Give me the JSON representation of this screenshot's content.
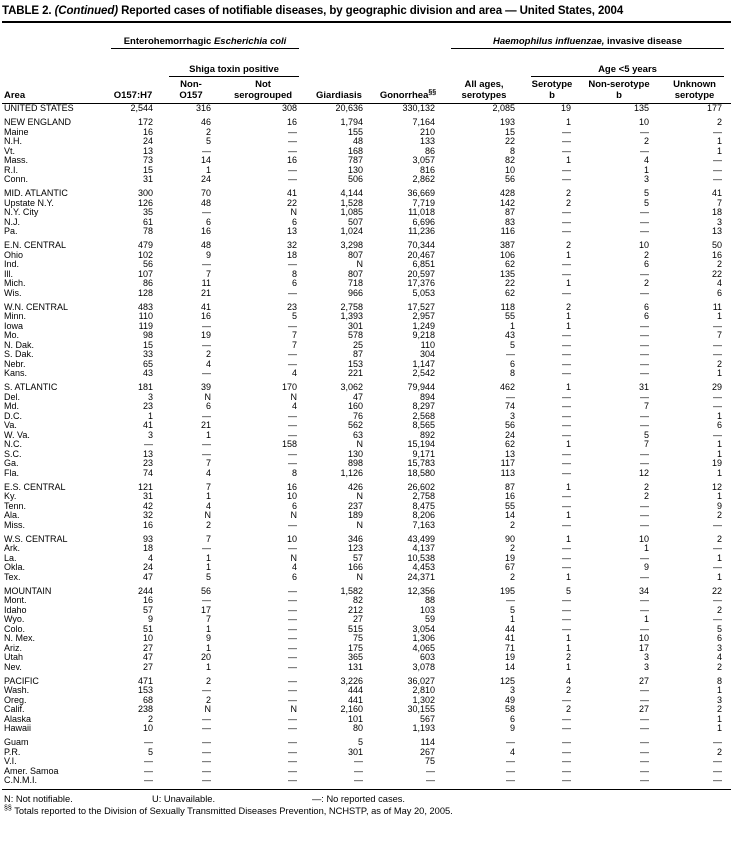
{
  "title": {
    "prefix": "TABLE 2.",
    "continued": " (Continued)",
    "text": " Reported cases of notifiable diseases, by geographic division and area — United States, 2004"
  },
  "header": {
    "area": "Area",
    "ehec_prefix": "Enterohemorrhagic ",
    "ehec_italic": "Escherichia coli",
    "shiga": "Shiga toxin positive",
    "hinf_italic": "Haemophilus influenzae,",
    "hinf_suffix": " invasive disease",
    "age5": "Age <5 years",
    "col_o157": "O157:H7",
    "col_non_o157": "Non-\nO157",
    "col_not_serogrouped": "Not\nserogrouped",
    "col_giardiasis": "Giardiasis",
    "col_gonorrhea": "Gonorrhea",
    "col_gonorrhea_sup": "§§",
    "col_all_ages": "All ages,\nserotypes",
    "col_serotype_b": "Serotype\nb",
    "col_non_serotype_b": "Non-serotype\nb",
    "col_unknown": "Unknown\nserotype"
  },
  "table": {
    "sections": [
      {
        "rows": [
          {
            "area": "UNITED STATES",
            "values": [
              "2,544",
              "316",
              "308",
              "20,636",
              "330,132",
              "2,085",
              "19",
              "135",
              "177"
            ]
          }
        ]
      },
      {
        "rows": [
          {
            "area": "NEW ENGLAND",
            "values": [
              "172",
              "46",
              "16",
              "1,794",
              "7,164",
              "193",
              "1",
              "10",
              "2"
            ]
          },
          {
            "area": "Maine",
            "values": [
              "16",
              "2",
              "—",
              "155",
              "210",
              "15",
              "—",
              "—",
              "—"
            ]
          },
          {
            "area": "N.H.",
            "values": [
              "24",
              "5",
              "—",
              "48",
              "133",
              "22",
              "—",
              "2",
              "1"
            ]
          },
          {
            "area": "Vt.",
            "values": [
              "13",
              "—",
              "—",
              "168",
              "86",
              "8",
              "—",
              "—",
              "1"
            ]
          },
          {
            "area": "Mass.",
            "values": [
              "73",
              "14",
              "16",
              "787",
              "3,057",
              "82",
              "1",
              "4",
              "—"
            ]
          },
          {
            "area": "R.I.",
            "values": [
              "15",
              "1",
              "—",
              "130",
              "816",
              "10",
              "—",
              "1",
              "—"
            ]
          },
          {
            "area": "Conn.",
            "values": [
              "31",
              "24",
              "—",
              "506",
              "2,862",
              "56",
              "—",
              "3",
              "—"
            ]
          }
        ]
      },
      {
        "rows": [
          {
            "area": "MID. ATLANTIC",
            "values": [
              "300",
              "70",
              "41",
              "4,144",
              "36,669",
              "428",
              "2",
              "5",
              "41"
            ]
          },
          {
            "area": "Upstate N.Y.",
            "values": [
              "126",
              "48",
              "22",
              "1,528",
              "7,719",
              "142",
              "2",
              "5",
              "7"
            ]
          },
          {
            "area": "N.Y. City",
            "values": [
              "35",
              "—",
              "N",
              "1,085",
              "11,018",
              "87",
              "—",
              "—",
              "18"
            ]
          },
          {
            "area": "N.J.",
            "values": [
              "61",
              "6",
              "6",
              "507",
              "6,696",
              "83",
              "—",
              "—",
              "3"
            ]
          },
          {
            "area": "Pa.",
            "values": [
              "78",
              "16",
              "13",
              "1,024",
              "11,236",
              "116",
              "—",
              "—",
              "13"
            ]
          }
        ]
      },
      {
        "rows": [
          {
            "area": "E.N. CENTRAL",
            "values": [
              "479",
              "48",
              "32",
              "3,298",
              "70,344",
              "387",
              "2",
              "10",
              "50"
            ]
          },
          {
            "area": "Ohio",
            "values": [
              "102",
              "9",
              "18",
              "807",
              "20,467",
              "106",
              "1",
              "2",
              "16"
            ]
          },
          {
            "area": "Ind.",
            "values": [
              "56",
              "—",
              "—",
              "N",
              "6,851",
              "62",
              "—",
              "6",
              "2"
            ]
          },
          {
            "area": "Ill.",
            "values": [
              "107",
              "7",
              "8",
              "807",
              "20,597",
              "135",
              "—",
              "—",
              "22"
            ]
          },
          {
            "area": "Mich.",
            "values": [
              "86",
              "11",
              "6",
              "718",
              "17,376",
              "22",
              "1",
              "2",
              "4"
            ]
          },
          {
            "area": "Wis.",
            "values": [
              "128",
              "21",
              "—",
              "966",
              "5,053",
              "62",
              "—",
              "—",
              "6"
            ]
          }
        ]
      },
      {
        "rows": [
          {
            "area": "W.N. CENTRAL",
            "values": [
              "483",
              "41",
              "23",
              "2,758",
              "17,527",
              "118",
              "2",
              "6",
              "11"
            ]
          },
          {
            "area": "Minn.",
            "values": [
              "110",
              "16",
              "5",
              "1,393",
              "2,957",
              "55",
              "1",
              "6",
              "1"
            ]
          },
          {
            "area": "Iowa",
            "values": [
              "119",
              "—",
              "—",
              "301",
              "1,249",
              "1",
              "1",
              "—",
              "—"
            ]
          },
          {
            "area": "Mo.",
            "values": [
              "98",
              "19",
              "7",
              "578",
              "9,218",
              "43",
              "—",
              "—",
              "7"
            ]
          },
          {
            "area": "N. Dak.",
            "values": [
              "15",
              "—",
              "7",
              "25",
              "110",
              "5",
              "—",
              "—",
              "—"
            ]
          },
          {
            "area": "S. Dak.",
            "values": [
              "33",
              "2",
              "—",
              "87",
              "304",
              "—",
              "—",
              "—",
              "—"
            ]
          },
          {
            "area": "Nebr.",
            "values": [
              "65",
              "4",
              "—",
              "153",
              "1,147",
              "6",
              "—",
              "—",
              "2"
            ]
          },
          {
            "area": "Kans.",
            "values": [
              "43",
              "—",
              "4",
              "221",
              "2,542",
              "8",
              "—",
              "—",
              "1"
            ]
          }
        ]
      },
      {
        "rows": [
          {
            "area": "S. ATLANTIC",
            "values": [
              "181",
              "39",
              "170",
              "3,062",
              "79,944",
              "462",
              "1",
              "31",
              "29"
            ]
          },
          {
            "area": "Del.",
            "values": [
              "3",
              "N",
              "N",
              "47",
              "894",
              "—",
              "—",
              "—",
              "—"
            ]
          },
          {
            "area": "Md.",
            "values": [
              "23",
              "6",
              "4",
              "160",
              "8,297",
              "74",
              "—",
              "7",
              "—"
            ]
          },
          {
            "area": "D.C.",
            "values": [
              "1",
              "—",
              "—",
              "76",
              "2,568",
              "3",
              "—",
              "—",
              "1"
            ]
          },
          {
            "area": "Va.",
            "values": [
              "41",
              "21",
              "—",
              "562",
              "8,565",
              "56",
              "—",
              "—",
              "6"
            ]
          },
          {
            "area": "W. Va.",
            "values": [
              "3",
              "1",
              "—",
              "63",
              "892",
              "24",
              "—",
              "5",
              "—"
            ]
          },
          {
            "area": "N.C.",
            "values": [
              "—",
              "—",
              "158",
              "N",
              "15,194",
              "62",
              "1",
              "7",
              "1"
            ]
          },
          {
            "area": "S.C.",
            "values": [
              "13",
              "—",
              "—",
              "130",
              "9,171",
              "13",
              "—",
              "—",
              "1"
            ]
          },
          {
            "area": "Ga.",
            "values": [
              "23",
              "7",
              "—",
              "898",
              "15,783",
              "117",
              "—",
              "—",
              "19"
            ]
          },
          {
            "area": "Fla.",
            "values": [
              "74",
              "4",
              "8",
              "1,126",
              "18,580",
              "113",
              "—",
              "12",
              "1"
            ]
          }
        ]
      },
      {
        "rows": [
          {
            "area": "E.S. CENTRAL",
            "values": [
              "121",
              "7",
              "16",
              "426",
              "26,602",
              "87",
              "1",
              "2",
              "12"
            ]
          },
          {
            "area": "Ky.",
            "values": [
              "31",
              "1",
              "10",
              "N",
              "2,758",
              "16",
              "—",
              "2",
              "1"
            ]
          },
          {
            "area": "Tenn.",
            "values": [
              "42",
              "4",
              "6",
              "237",
              "8,475",
              "55",
              "—",
              "—",
              "9"
            ]
          },
          {
            "area": "Ala.",
            "values": [
              "32",
              "N",
              "N",
              "189",
              "8,206",
              "14",
              "1",
              "—",
              "2"
            ]
          },
          {
            "area": "Miss.",
            "values": [
              "16",
              "2",
              "—",
              "N",
              "7,163",
              "2",
              "—",
              "—",
              "—"
            ]
          }
        ]
      },
      {
        "rows": [
          {
            "area": "W.S. CENTRAL",
            "values": [
              "93",
              "7",
              "10",
              "346",
              "43,499",
              "90",
              "1",
              "10",
              "2"
            ]
          },
          {
            "area": "Ark.",
            "values": [
              "18",
              "—",
              "—",
              "123",
              "4,137",
              "2",
              "—",
              "1",
              "—"
            ]
          },
          {
            "area": "La.",
            "values": [
              "4",
              "1",
              "N",
              "57",
              "10,538",
              "19",
              "—",
              "—",
              "1"
            ]
          },
          {
            "area": "Okla.",
            "values": [
              "24",
              "1",
              "4",
              "166",
              "4,453",
              "67",
              "—",
              "9",
              "—"
            ]
          },
          {
            "area": "Tex.",
            "values": [
              "47",
              "5",
              "6",
              "N",
              "24,371",
              "2",
              "1",
              "—",
              "1"
            ]
          }
        ]
      },
      {
        "rows": [
          {
            "area": "MOUNTAIN",
            "values": [
              "244",
              "56",
              "—",
              "1,582",
              "12,356",
              "195",
              "5",
              "34",
              "22"
            ]
          },
          {
            "area": "Mont.",
            "values": [
              "16",
              "—",
              "—",
              "82",
              "88",
              "—",
              "—",
              "—",
              "—"
            ]
          },
          {
            "area": "Idaho",
            "values": [
              "57",
              "17",
              "—",
              "212",
              "103",
              "5",
              "—",
              "—",
              "2"
            ]
          },
          {
            "area": "Wyo.",
            "values": [
              "9",
              "7",
              "—",
              "27",
              "59",
              "1",
              "—",
              "1",
              "—"
            ]
          },
          {
            "area": "Colo.",
            "values": [
              "51",
              "1",
              "—",
              "515",
              "3,054",
              "44",
              "—",
              "—",
              "5"
            ]
          },
          {
            "area": "N. Mex.",
            "values": [
              "10",
              "9",
              "—",
              "75",
              "1,306",
              "41",
              "1",
              "10",
              "6"
            ]
          },
          {
            "area": "Ariz.",
            "values": [
              "27",
              "1",
              "—",
              "175",
              "4,065",
              "71",
              "1",
              "17",
              "3"
            ]
          },
          {
            "area": "Utah",
            "values": [
              "47",
              "20",
              "—",
              "365",
              "603",
              "19",
              "2",
              "3",
              "4"
            ]
          },
          {
            "area": "Nev.",
            "values": [
              "27",
              "1",
              "—",
              "131",
              "3,078",
              "14",
              "1",
              "3",
              "2"
            ]
          }
        ]
      },
      {
        "rows": [
          {
            "area": "PACIFIC",
            "values": [
              "471",
              "2",
              "—",
              "3,226",
              "36,027",
              "125",
              "4",
              "27",
              "8"
            ]
          },
          {
            "area": "Wash.",
            "values": [
              "153",
              "—",
              "—",
              "444",
              "2,810",
              "3",
              "2",
              "—",
              "1"
            ]
          },
          {
            "area": "Oreg.",
            "values": [
              "68",
              "2",
              "—",
              "441",
              "1,302",
              "49",
              "—",
              "—",
              "3"
            ]
          },
          {
            "area": "Calif.",
            "values": [
              "238",
              "N",
              "N",
              "2,160",
              "30,155",
              "58",
              "2",
              "27",
              "2"
            ]
          },
          {
            "area": "Alaska",
            "values": [
              "2",
              "—",
              "—",
              "101",
              "567",
              "6",
              "—",
              "—",
              "1"
            ]
          },
          {
            "area": "Hawaii",
            "values": [
              "10",
              "—",
              "—",
              "80",
              "1,193",
              "9",
              "—",
              "—",
              "1"
            ]
          }
        ]
      },
      {
        "rows": [
          {
            "area": "Guam",
            "values": [
              "—",
              "—",
              "—",
              "5",
              "114",
              "—",
              "—",
              "—",
              "—"
            ]
          },
          {
            "area": "P.R.",
            "values": [
              "5",
              "—",
              "—",
              "301",
              "267",
              "4",
              "—",
              "—",
              "2"
            ]
          },
          {
            "area": "V.I.",
            "values": [
              "—",
              "—",
              "—",
              "—",
              "75",
              "—",
              "—",
              "—",
              "—"
            ]
          },
          {
            "area": "Amer. Samoa",
            "values": [
              "—",
              "—",
              "—",
              "—",
              "—",
              "—",
              "—",
              "—",
              "—"
            ]
          },
          {
            "area": "C.N.M.I.",
            "values": [
              "—",
              "—",
              "—",
              "—",
              "—",
              "—",
              "—",
              "—",
              "—"
            ]
          }
        ]
      }
    ]
  },
  "footnotes": {
    "n": "N: Not notifiable.",
    "u": "U: Unavailable.",
    "dash": "—: No reported cases.",
    "sup": "§§",
    "note": "Totals reported to the Division of Sexually Transmitted Diseases Prevention, NCHSTP, as of May 20, 2005."
  }
}
